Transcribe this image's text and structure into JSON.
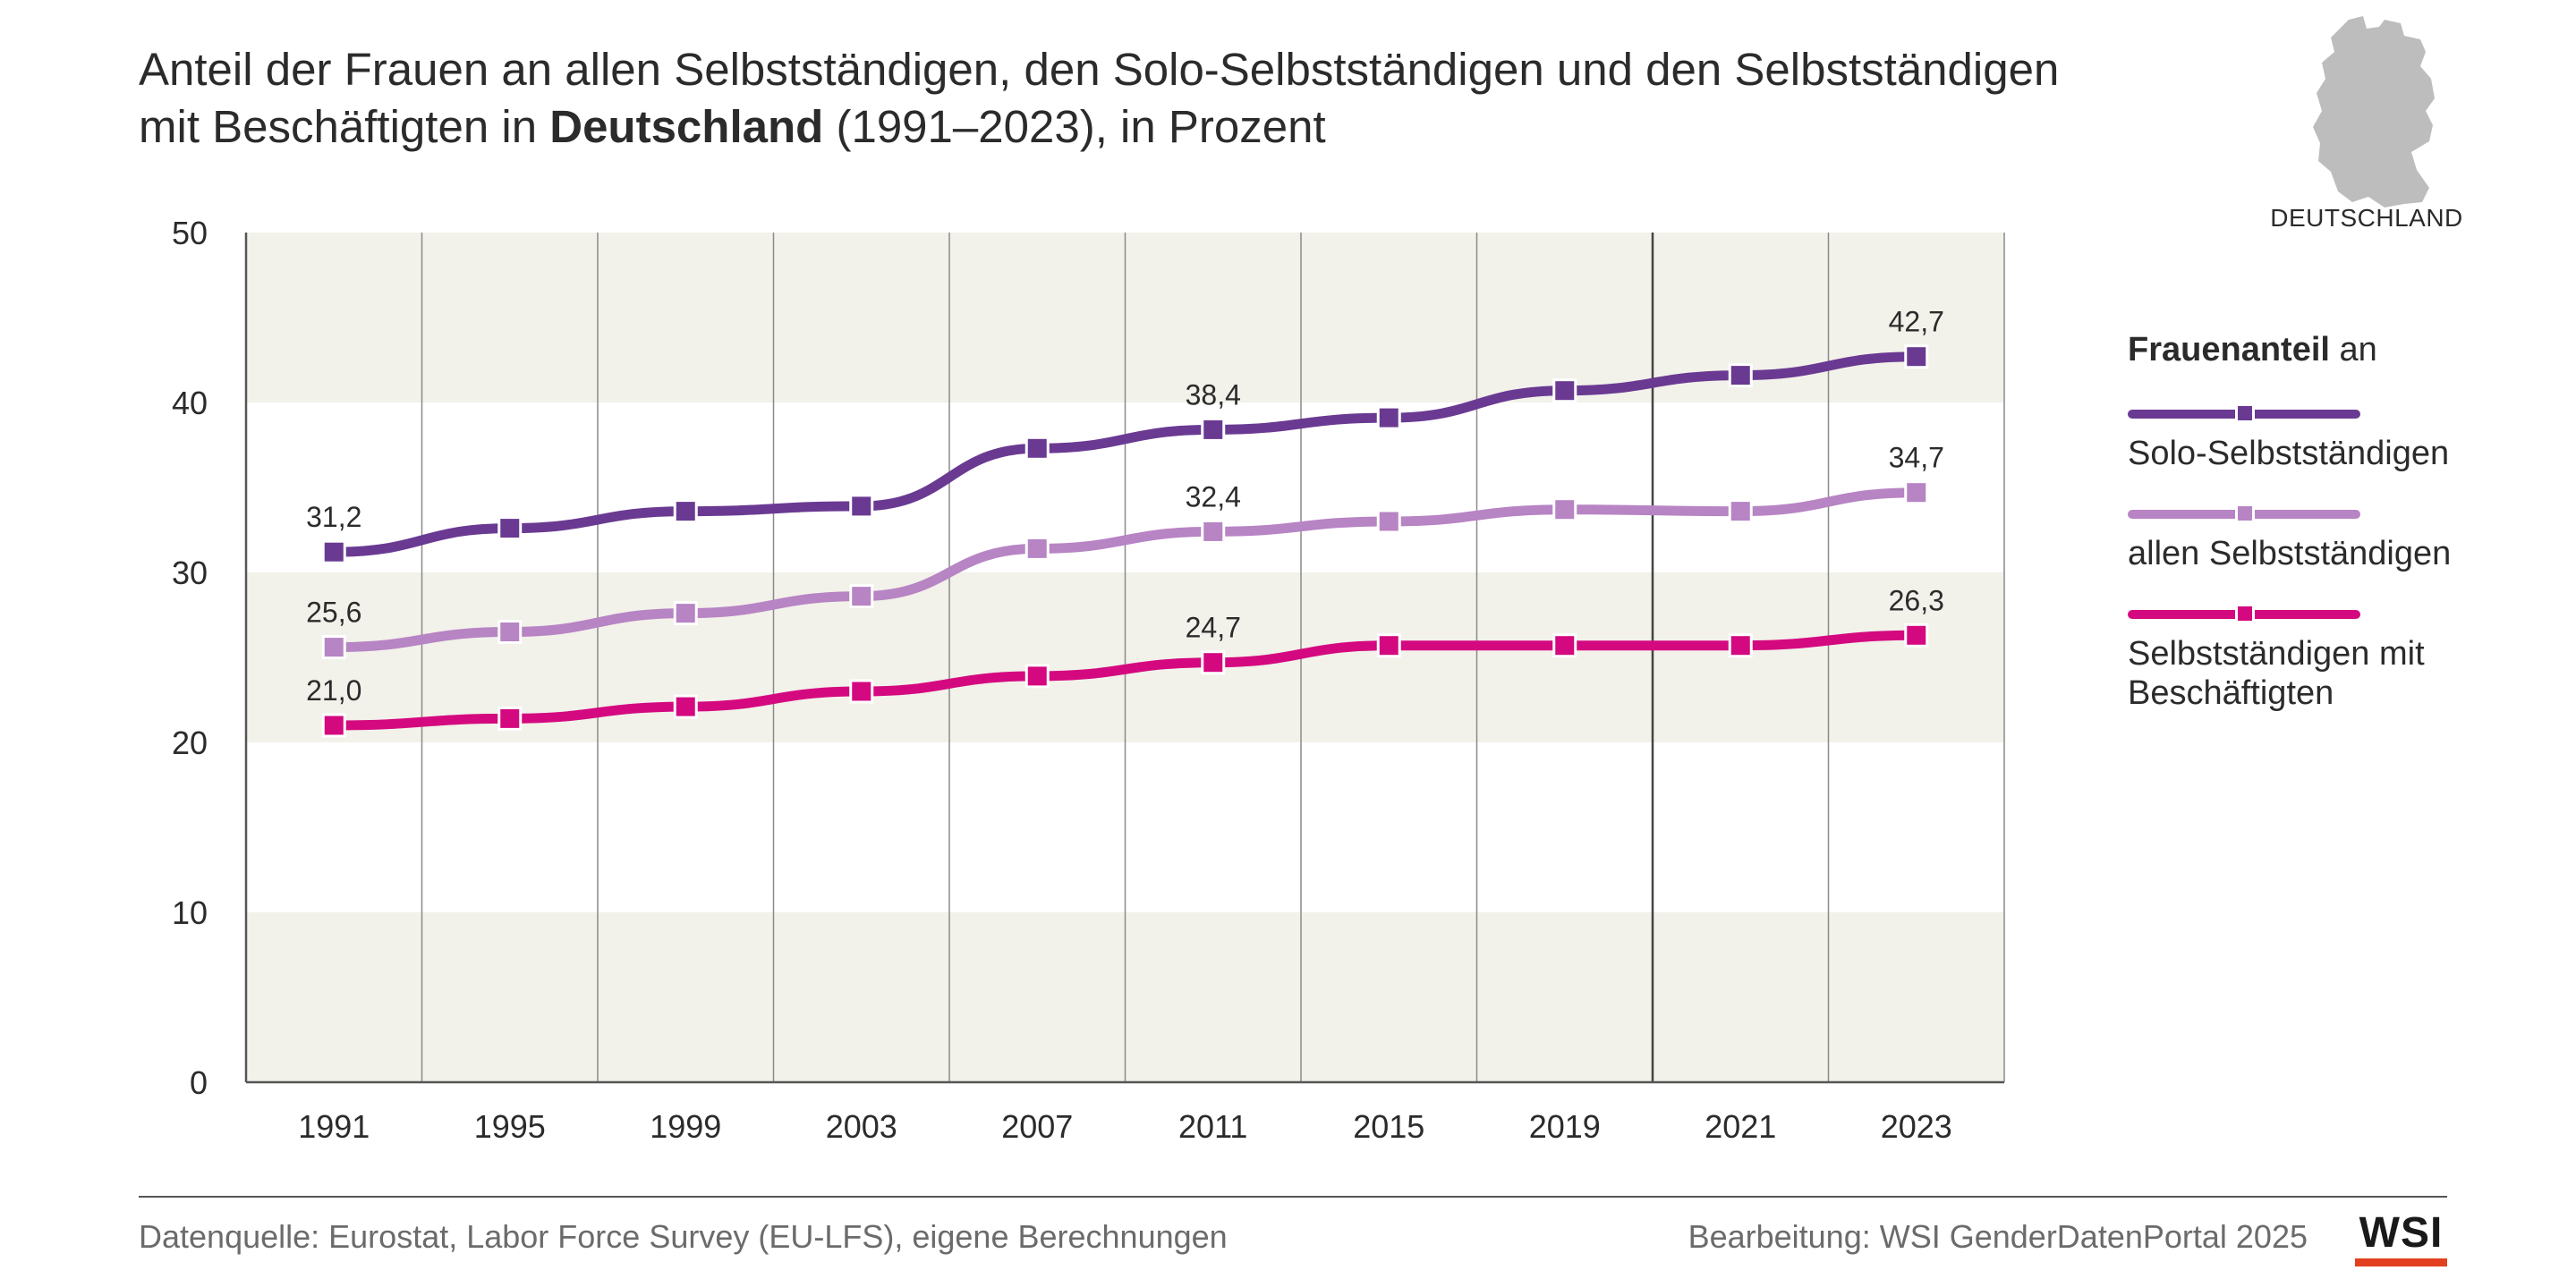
{
  "title": {
    "line1": "Anteil der Frauen an allen Selbstständigen, den Solo-Selbstständigen und den Selbstständigen",
    "line2_pre": "mit Beschäftigten in ",
    "line2_bold": "Deutschland",
    "line2_post": " (1991–2023), in Prozent"
  },
  "map": {
    "label": "DEUTSCHLAND",
    "icon": "germany-map-icon"
  },
  "legend": {
    "heading_bold": "Frauenanteil",
    "heading_rest": " an",
    "items": [
      {
        "label": "Solo-Selbstständigen",
        "color": "#6a3a92"
      },
      {
        "label": "allen Selbstständigen",
        "color": "#b784c4"
      },
      {
        "label": "Selbstständigen mit\nBeschäftigten",
        "color": "#d4097f"
      }
    ]
  },
  "footer": {
    "source": "Datenquelle: Eurostat, Labor Force Survey (EU-LFS), eigene Berechnungen",
    "credit": "Bearbeitung: WSI GenderDatenPortal 2025",
    "logo_text": "WSI"
  },
  "chart_data": {
    "type": "line",
    "title": "Anteil der Frauen an allen Selbstständigen, den Solo-Selbstständigen und den Selbstständigen mit Beschäftigten in Deutschland (1991–2023), in Prozent",
    "xlabel": "",
    "ylabel": "",
    "categories": [
      "1991",
      "1995",
      "1999",
      "2003",
      "2007",
      "2011",
      "2015",
      "2019",
      "2021",
      "2023"
    ],
    "ylim": [
      0,
      50
    ],
    "yticks": [
      "0",
      "10",
      "20",
      "30",
      "40",
      "50"
    ],
    "legend_position": "right",
    "grid": true,
    "series": [
      {
        "name": "Solo-Selbstständigen",
        "color": "#6a3a92",
        "values": [
          31.2,
          32.6,
          33.6,
          33.9,
          37.3,
          38.4,
          39.1,
          40.7,
          41.6,
          42.7
        ],
        "labels": {
          "0": "31,2",
          "5": "38,4",
          "9": "42,7"
        }
      },
      {
        "name": "allen Selbstständigen",
        "color": "#b784c4",
        "values": [
          25.6,
          26.5,
          27.6,
          28.6,
          31.4,
          32.4,
          33.0,
          33.7,
          33.6,
          34.7
        ],
        "labels": {
          "0": "25,6",
          "5": "32,4",
          "9": "34,7"
        }
      },
      {
        "name": "Selbstständigen mit Beschäftigten",
        "color": "#d4097f",
        "values": [
          21.0,
          21.4,
          22.1,
          23.0,
          23.9,
          24.7,
          25.7,
          25.7,
          25.7,
          26.3
        ],
        "labels": {
          "0": "21,0",
          "5": "24,7",
          "9": "26,3"
        }
      }
    ],
    "colors": {
      "band": "#f2f1ea",
      "grid": "#8a8a8a",
      "axis": "#555555"
    }
  }
}
